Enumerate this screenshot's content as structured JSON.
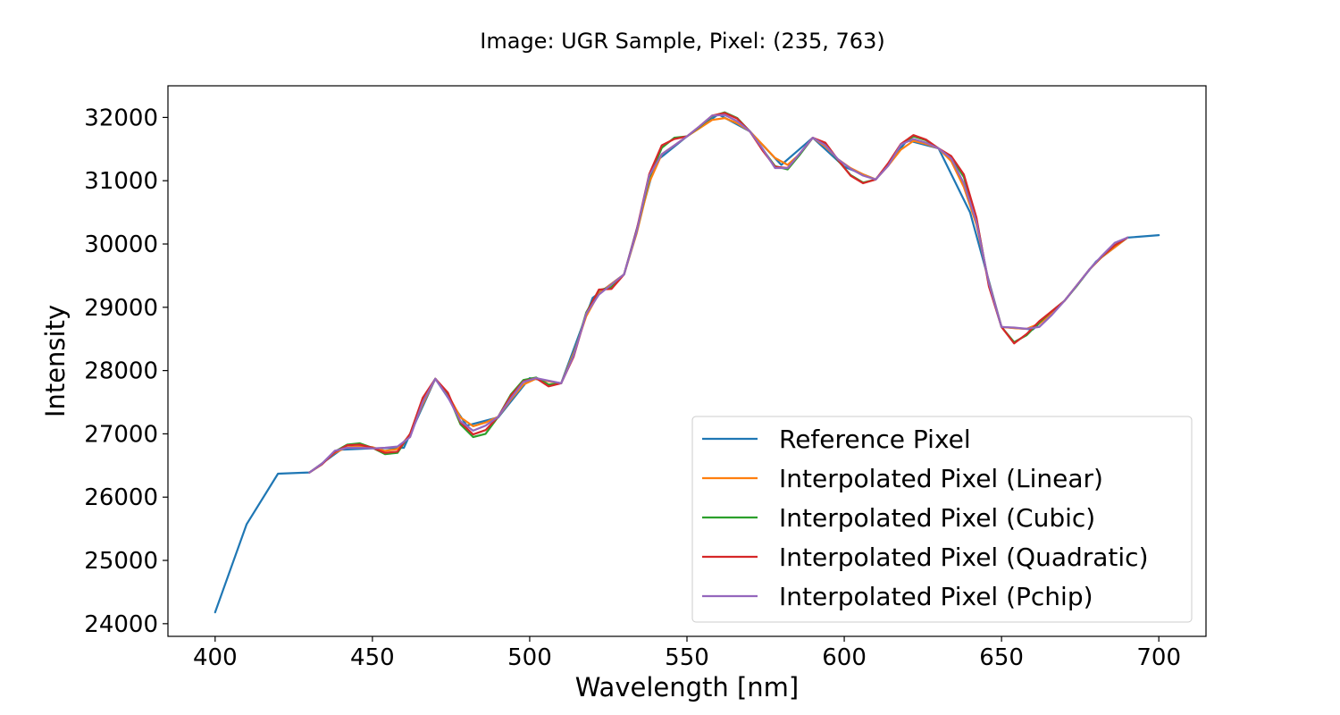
{
  "chart_data": {
    "type": "line",
    "title": "Image: UGR Sample, Pixel: (235, 763)",
    "xlabel": "Wavelength [nm]",
    "ylabel": "Intensity",
    "xlim": [
      385,
      715
    ],
    "ylim": [
      23800,
      32500
    ],
    "xticks": [
      400,
      450,
      500,
      550,
      600,
      650,
      700
    ],
    "yticks": [
      24000,
      25000,
      26000,
      27000,
      28000,
      29000,
      30000,
      31000,
      32000
    ],
    "grid": false,
    "legend_position": "lower right",
    "series": [
      {
        "name": "Reference Pixel",
        "color": "#1f77b4",
        "points": [
          [
            400,
            24180
          ],
          [
            410,
            25570
          ],
          [
            420,
            26370
          ],
          [
            430,
            26390
          ],
          [
            440,
            26750
          ],
          [
            450,
            26770
          ],
          [
            460,
            26780
          ],
          [
            470,
            27870
          ],
          [
            480,
            27130
          ],
          [
            490,
            27260
          ],
          [
            500,
            27880
          ],
          [
            510,
            27800
          ],
          [
            520,
            29150
          ],
          [
            530,
            29520
          ],
          [
            540,
            31300
          ],
          [
            550,
            31700
          ],
          [
            560,
            32050
          ],
          [
            570,
            31780
          ],
          [
            580,
            31250
          ],
          [
            590,
            31680
          ],
          [
            600,
            31220
          ],
          [
            610,
            31020
          ],
          [
            620,
            31640
          ],
          [
            630,
            31510
          ],
          [
            640,
            30500
          ],
          [
            650,
            28690
          ],
          [
            660,
            28650
          ],
          [
            670,
            29100
          ],
          [
            680,
            29720
          ],
          [
            690,
            30100
          ],
          [
            700,
            30140
          ]
        ]
      },
      {
        "name": "Interpolated Pixel (Linear)",
        "color": "#ff7f0e",
        "points": [
          [
            430,
            26390
          ],
          [
            434,
            26530
          ],
          [
            438,
            26700
          ],
          [
            442,
            26790
          ],
          [
            446,
            26800
          ],
          [
            450,
            26790
          ],
          [
            454,
            26730
          ],
          [
            458,
            26760
          ],
          [
            462,
            26990
          ],
          [
            466,
            27470
          ],
          [
            470,
            27870
          ],
          [
            474,
            27620
          ],
          [
            478,
            27260
          ],
          [
            482,
            27120
          ],
          [
            486,
            27180
          ],
          [
            490,
            27270
          ],
          [
            494,
            27540
          ],
          [
            498,
            27780
          ],
          [
            502,
            27870
          ],
          [
            506,
            27830
          ],
          [
            510,
            27800
          ],
          [
            514,
            28280
          ],
          [
            518,
            28860
          ],
          [
            522,
            29220
          ],
          [
            526,
            29370
          ],
          [
            530,
            29520
          ],
          [
            534,
            30170
          ],
          [
            538,
            30970
          ],
          [
            542,
            31420
          ],
          [
            546,
            31560
          ],
          [
            550,
            31700
          ],
          [
            554,
            31830
          ],
          [
            558,
            31960
          ],
          [
            562,
            31990
          ],
          [
            566,
            31910
          ],
          [
            570,
            31780
          ],
          [
            574,
            31570
          ],
          [
            578,
            31360
          ],
          [
            582,
            31250
          ],
          [
            586,
            31430
          ],
          [
            590,
            31680
          ],
          [
            594,
            31540
          ],
          [
            598,
            31340
          ],
          [
            602,
            31200
          ],
          [
            606,
            31100
          ],
          [
            610,
            31020
          ],
          [
            614,
            31240
          ],
          [
            618,
            31490
          ],
          [
            622,
            31630
          ],
          [
            626,
            31580
          ],
          [
            630,
            31510
          ],
          [
            634,
            31310
          ],
          [
            638,
            30900
          ],
          [
            642,
            30310
          ],
          [
            646,
            29390
          ],
          [
            650,
            28690
          ],
          [
            654,
            28670
          ],
          [
            658,
            28660
          ],
          [
            662,
            28740
          ],
          [
            666,
            28900
          ],
          [
            670,
            29100
          ],
          [
            674,
            29350
          ],
          [
            678,
            29600
          ],
          [
            682,
            29800
          ],
          [
            686,
            29950
          ],
          [
            690,
            30100
          ]
        ]
      },
      {
        "name": "Interpolated Pixel (Cubic)",
        "color": "#2ca02c",
        "points": [
          [
            430,
            26390
          ],
          [
            434,
            26520
          ],
          [
            438,
            26720
          ],
          [
            442,
            26830
          ],
          [
            446,
            26850
          ],
          [
            450,
            26780
          ],
          [
            454,
            26680
          ],
          [
            458,
            26700
          ],
          [
            462,
            27000
          ],
          [
            466,
            27550
          ],
          [
            470,
            27870
          ],
          [
            474,
            27620
          ],
          [
            478,
            27150
          ],
          [
            482,
            26950
          ],
          [
            486,
            27000
          ],
          [
            490,
            27270
          ],
          [
            494,
            27620
          ],
          [
            498,
            27850
          ],
          [
            502,
            27890
          ],
          [
            506,
            27780
          ],
          [
            510,
            27800
          ],
          [
            514,
            28250
          ],
          [
            518,
            28920
          ],
          [
            522,
            29270
          ],
          [
            526,
            29320
          ],
          [
            530,
            29520
          ],
          [
            534,
            30200
          ],
          [
            538,
            31050
          ],
          [
            542,
            31520
          ],
          [
            546,
            31680
          ],
          [
            550,
            31700
          ],
          [
            554,
            31850
          ],
          [
            558,
            32020
          ],
          [
            562,
            32080
          ],
          [
            566,
            31990
          ],
          [
            570,
            31780
          ],
          [
            574,
            31500
          ],
          [
            578,
            31230
          ],
          [
            582,
            31180
          ],
          [
            586,
            31420
          ],
          [
            590,
            31680
          ],
          [
            594,
            31580
          ],
          [
            598,
            31320
          ],
          [
            602,
            31090
          ],
          [
            606,
            30970
          ],
          [
            610,
            31020
          ],
          [
            614,
            31260
          ],
          [
            618,
            31570
          ],
          [
            622,
            31700
          ],
          [
            626,
            31640
          ],
          [
            630,
            31510
          ],
          [
            634,
            31370
          ],
          [
            638,
            31060
          ],
          [
            642,
            30400
          ],
          [
            646,
            29350
          ],
          [
            650,
            28690
          ],
          [
            654,
            28450
          ],
          [
            658,
            28560
          ],
          [
            662,
            28760
          ],
          [
            666,
            28940
          ],
          [
            670,
            29100
          ],
          [
            674,
            29340
          ],
          [
            678,
            29600
          ],
          [
            682,
            29810
          ],
          [
            686,
            29980
          ],
          [
            690,
            30100
          ]
        ]
      },
      {
        "name": "Interpolated Pixel (Quadratic)",
        "color": "#d62728",
        "points": [
          [
            430,
            26390
          ],
          [
            434,
            26520
          ],
          [
            438,
            26710
          ],
          [
            442,
            26820
          ],
          [
            446,
            26830
          ],
          [
            450,
            26780
          ],
          [
            454,
            26700
          ],
          [
            458,
            26720
          ],
          [
            462,
            27000
          ],
          [
            466,
            27570
          ],
          [
            470,
            27870
          ],
          [
            474,
            27650
          ],
          [
            478,
            27180
          ],
          [
            482,
            26990
          ],
          [
            486,
            27060
          ],
          [
            490,
            27270
          ],
          [
            494,
            27600
          ],
          [
            498,
            27830
          ],
          [
            502,
            27880
          ],
          [
            506,
            27750
          ],
          [
            510,
            27800
          ],
          [
            514,
            28220
          ],
          [
            518,
            28900
          ],
          [
            522,
            29280
          ],
          [
            526,
            29290
          ],
          [
            530,
            29520
          ],
          [
            534,
            30220
          ],
          [
            538,
            31100
          ],
          [
            542,
            31560
          ],
          [
            546,
            31660
          ],
          [
            550,
            31700
          ],
          [
            554,
            31860
          ],
          [
            558,
            32030
          ],
          [
            562,
            32070
          ],
          [
            566,
            31980
          ],
          [
            570,
            31780
          ],
          [
            574,
            31480
          ],
          [
            578,
            31220
          ],
          [
            582,
            31200
          ],
          [
            586,
            31440
          ],
          [
            590,
            31680
          ],
          [
            594,
            31600
          ],
          [
            598,
            31330
          ],
          [
            602,
            31080
          ],
          [
            606,
            30960
          ],
          [
            610,
            31020
          ],
          [
            614,
            31280
          ],
          [
            618,
            31580
          ],
          [
            622,
            31720
          ],
          [
            626,
            31650
          ],
          [
            630,
            31510
          ],
          [
            634,
            31390
          ],
          [
            638,
            31100
          ],
          [
            642,
            30420
          ],
          [
            646,
            29330
          ],
          [
            650,
            28690
          ],
          [
            654,
            28430
          ],
          [
            658,
            28580
          ],
          [
            662,
            28780
          ],
          [
            666,
            28940
          ],
          [
            670,
            29100
          ],
          [
            674,
            29350
          ],
          [
            678,
            29600
          ],
          [
            682,
            29810
          ],
          [
            686,
            29980
          ],
          [
            690,
            30100
          ]
        ]
      },
      {
        "name": "Interpolated Pixel (Pchip)",
        "color": "#9467bd",
        "points": [
          [
            430,
            26390
          ],
          [
            434,
            26530
          ],
          [
            438,
            26730
          ],
          [
            442,
            26780
          ],
          [
            446,
            26780
          ],
          [
            450,
            26770
          ],
          [
            454,
            26780
          ],
          [
            458,
            26800
          ],
          [
            462,
            26950
          ],
          [
            466,
            27500
          ],
          [
            470,
            27870
          ],
          [
            474,
            27580
          ],
          [
            478,
            27200
          ],
          [
            482,
            27050
          ],
          [
            486,
            27130
          ],
          [
            490,
            27270
          ],
          [
            494,
            27560
          ],
          [
            498,
            27820
          ],
          [
            502,
            27880
          ],
          [
            506,
            27840
          ],
          [
            510,
            27800
          ],
          [
            514,
            28240
          ],
          [
            518,
            28900
          ],
          [
            522,
            29200
          ],
          [
            526,
            29360
          ],
          [
            530,
            29520
          ],
          [
            534,
            30200
          ],
          [
            538,
            31080
          ],
          [
            542,
            31420
          ],
          [
            546,
            31560
          ],
          [
            550,
            31700
          ],
          [
            554,
            31860
          ],
          [
            558,
            32030
          ],
          [
            562,
            32040
          ],
          [
            566,
            31940
          ],
          [
            570,
            31780
          ],
          [
            574,
            31510
          ],
          [
            578,
            31200
          ],
          [
            582,
            31200
          ],
          [
            586,
            31440
          ],
          [
            590,
            31680
          ],
          [
            594,
            31560
          ],
          [
            598,
            31340
          ],
          [
            602,
            31190
          ],
          [
            606,
            31080
          ],
          [
            610,
            31020
          ],
          [
            614,
            31240
          ],
          [
            618,
            31570
          ],
          [
            622,
            31660
          ],
          [
            626,
            31600
          ],
          [
            630,
            31510
          ],
          [
            634,
            31350
          ],
          [
            638,
            30960
          ],
          [
            642,
            30350
          ],
          [
            646,
            29380
          ],
          [
            650,
            28690
          ],
          [
            654,
            28680
          ],
          [
            658,
            28660
          ],
          [
            662,
            28690
          ],
          [
            666,
            28880
          ],
          [
            670,
            29100
          ],
          [
            674,
            29350
          ],
          [
            678,
            29600
          ],
          [
            682,
            29820
          ],
          [
            686,
            30020
          ],
          [
            690,
            30100
          ]
        ]
      }
    ]
  }
}
